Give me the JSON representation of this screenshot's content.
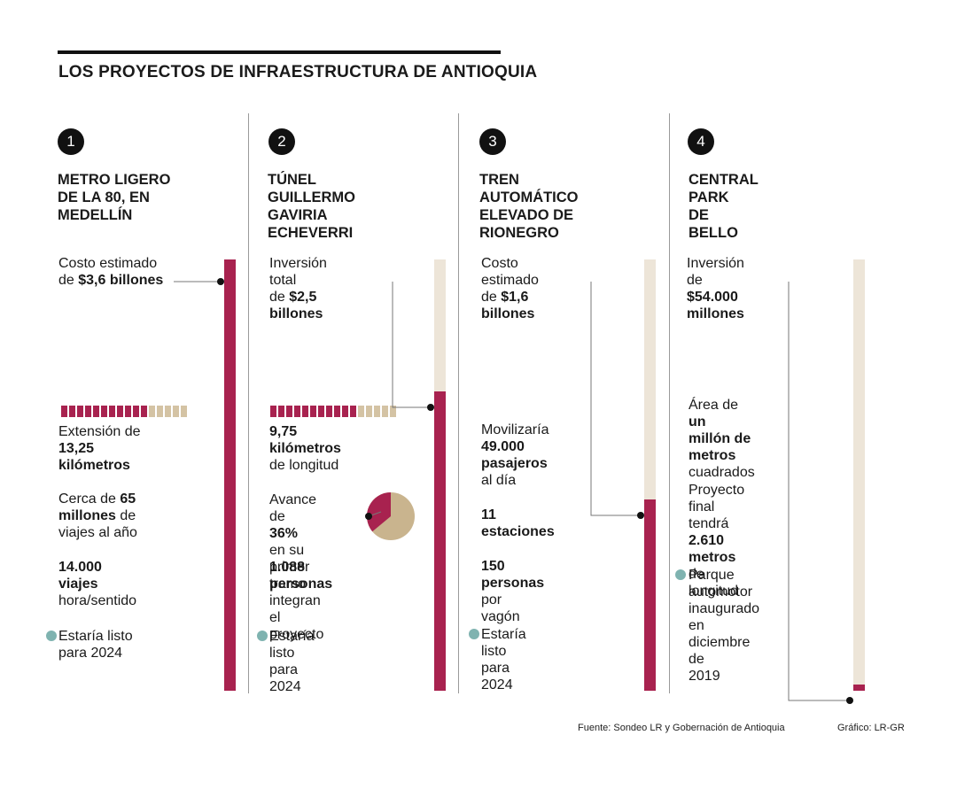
{
  "header": {
    "title": "LOS PROYECTOS DE INFRAESTRUCTURA DE ANTIOQUIA"
  },
  "colors": {
    "filled": "#a8224f",
    "remaining": "#ede5d8",
    "km_remaining": "#d4c3a4",
    "pie_rest": "#c9b48e",
    "bullet": "#7fb3b0"
  },
  "projects": [
    {
      "number": "1",
      "title": "METRO LIGERO\nDE LA 80, EN MEDELLÍN",
      "cost_prefix": "Costo estimado",
      "cost_pre": "de ",
      "cost_value": "$3,6 billones",
      "ext_label": "Extensión de",
      "ext_value1": "13,25",
      "ext_value2": "kilómetros",
      "trips_pre": "Cerca de ",
      "trips_value1": "65",
      "trips_value2": "millones",
      "trips_post": " de",
      "trips_line3": "viajes al año",
      "hour_value1": "14.000",
      "hour_value2": "viajes",
      "hour_line3": "hora/sentido",
      "ready1": "Estaría listo",
      "ready2": "para 2024"
    },
    {
      "number": "2",
      "title": "TÚNEL GUILLERMO\nGAVIRIA ECHEVERRI",
      "cost_prefix": "Inversión total",
      "cost_pre": "de ",
      "cost_value": "$2,5 billones",
      "len_value1": "9,75",
      "len_value2": "kilómetros",
      "len_line3": "de longitud",
      "adv_line1": "Avance de",
      "adv_value": "36%",
      "adv_post": " en su",
      "adv_line3": "primer tramo",
      "people_value1": "1.088",
      "people_value2": "personas",
      "people_post": " integran",
      "people_line3": "el proyecto",
      "ready1": "Estaría listo",
      "ready2": "para 2024"
    },
    {
      "number": "3",
      "title": "TREN AUTOMÁTICO\nELEVADO DE RIONEGRO",
      "cost_prefix": "Costo estimado",
      "cost_pre": "de ",
      "cost_value": "$1,6 billones",
      "mob_line1": "Movilizaría",
      "mob_value1": "49.000",
      "mob_value2": "pasajeros",
      "mob_line4": "al día",
      "st_value1": "11",
      "st_value2": "estaciones",
      "wag_value1": "150",
      "wag_value2": "personas",
      "wag_line3": "por vagón",
      "ready1": "Estaría listo",
      "ready2": "para 2024"
    },
    {
      "number": "4",
      "title": "CENTRAL PARK\nDE BELLO",
      "cost_prefix": "Inversión de",
      "cost_value": "$54.000 millones",
      "area_pre": "Área de ",
      "area_value1": "un",
      "area_value2": "millón de",
      "area_value3": "metros",
      "area_line4": "cuadrados",
      "final_line1": "Proyecto final",
      "final_pre": "tendrá ",
      "final_value1": "2.610",
      "final_value2": "metros",
      "final_post": " de",
      "final_line4": "longitud",
      "park_line1": "Parque",
      "park_line2": "automotor",
      "park_line3": "inaugurado en",
      "park_line4": "diciembre de",
      "park_line5": "2019"
    }
  ],
  "chart_data": {
    "type": "bar",
    "categories": [
      "METRO LIGERO DE LA 80, EN MEDELLÍN",
      "TÚNEL GUILLERMO GAVIRIA ECHEVERRI",
      "TREN AUTOMÁTICO ELEVADO DE RIONEGRO",
      "CENTRAL PARK DE BELLO"
    ],
    "values": [
      3.6,
      2.5,
      1.6,
      0.054
    ],
    "ylim": [
      0,
      3.6
    ],
    "orientation": "vertical",
    "pie": {
      "project": "TÚNEL GUILLERMO GAVIRIA ECHEVERRI",
      "value": 36
    },
    "km_squares": {
      "filled": 11,
      "total": 16
    }
  },
  "footer": {
    "source": "Fuente: Sondeo LR y Gobernación de Antioquia",
    "credit": "Gráfico: LR-GR"
  }
}
